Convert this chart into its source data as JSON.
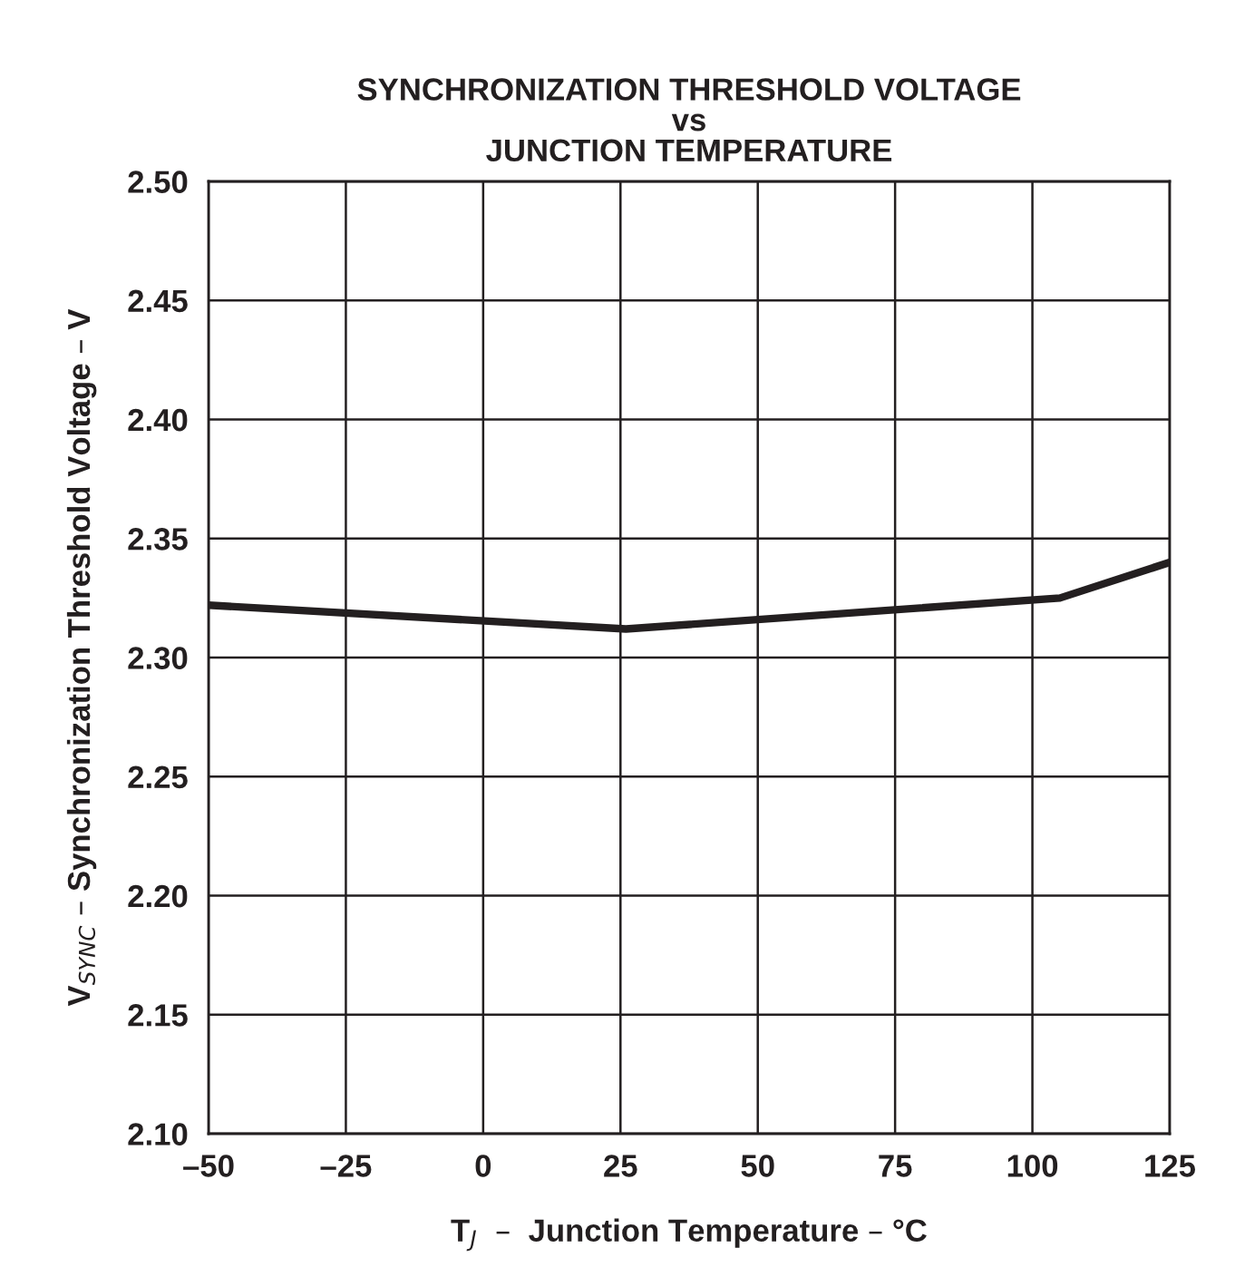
{
  "chart_data": {
    "type": "line",
    "title": "SYNCHRONIZATION THRESHOLD VOLTAGE\nvs\nJUNCTION TEMPERATURE",
    "xlabel": "T$_{J}$  –  Junction Temperature – °C",
    "ylabel": "V$_{SYNC}$ – Synchronization Threshold Voltage – V",
    "series": [
      {
        "color": "#231f20",
        "x": [
          -50,
          26,
          105,
          125
        ],
        "values": [
          2.322,
          2.312,
          2.325,
          2.34
        ]
      }
    ],
    "xlim": [
      -50,
      125
    ],
    "xticks": [
      {
        "value": -50,
        "label": "–50"
      },
      {
        "value": -25,
        "label": "–25"
      },
      0,
      25,
      50,
      75,
      100,
      125
    ],
    "ylim": [
      2.1,
      2.5
    ],
    "yticks": [
      {
        "value": 2.1,
        "label": "2.10"
      },
      {
        "value": 2.15,
        "label": "2.15"
      },
      {
        "value": 2.2,
        "label": "2.20"
      },
      {
        "value": 2.25,
        "label": "2.25"
      },
      {
        "value": 2.3,
        "label": "2.30"
      },
      {
        "value": 2.35,
        "label": "2.35"
      },
      {
        "value": 2.4,
        "label": "2.40"
      },
      {
        "value": 2.45,
        "label": "2.45"
      },
      {
        "value": 2.5,
        "label": "2.50"
      }
    ],
    "grid": true,
    "legend": false
  }
}
